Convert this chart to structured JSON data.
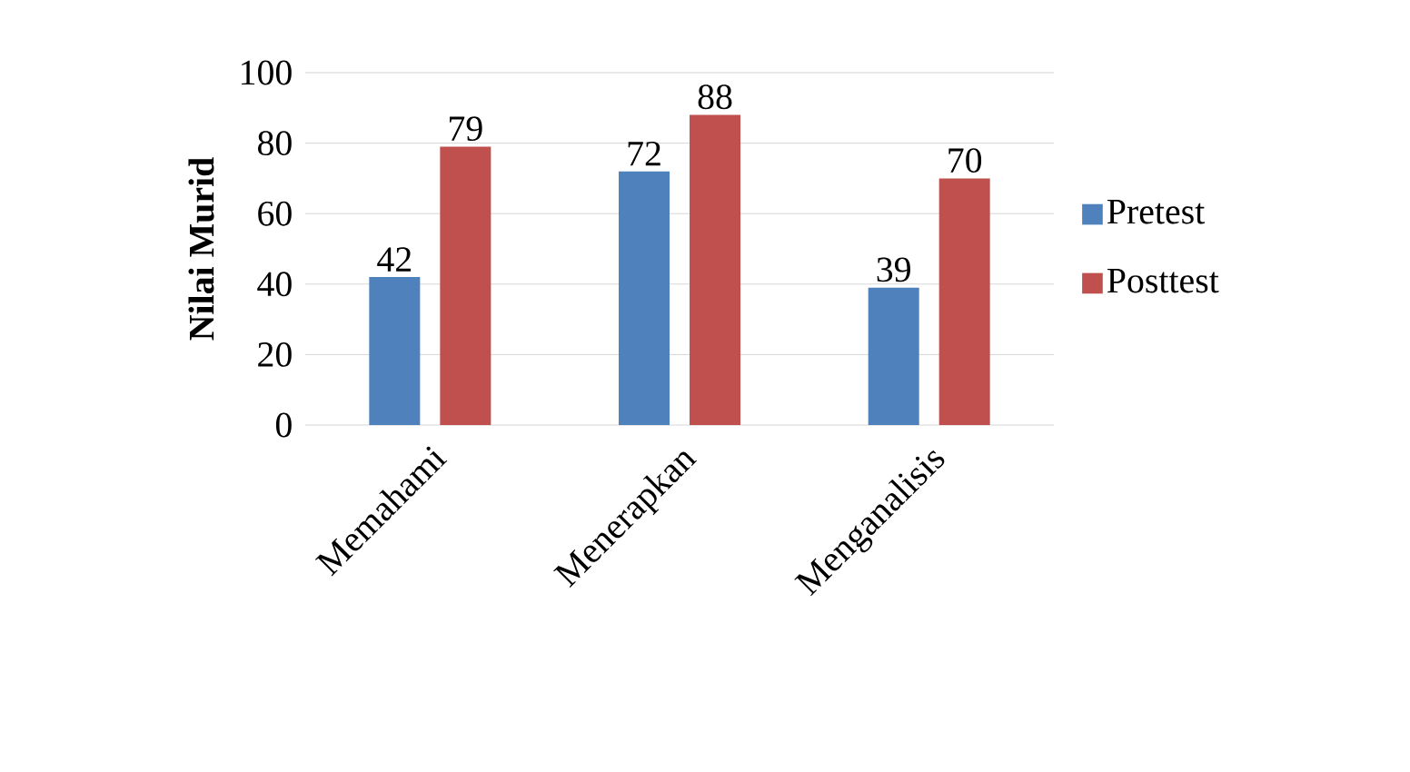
{
  "chart_data": {
    "type": "bar",
    "ylabel": "Nilai Murid",
    "categories": [
      "Memahami",
      "Menerapkan",
      "Menganalisis"
    ],
    "series": [
      {
        "name": "Pretest",
        "color": "#4f81bd",
        "values": [
          42,
          72,
          39
        ]
      },
      {
        "name": "Posttest",
        "color": "#c0504d",
        "values": [
          79,
          88,
          70
        ]
      }
    ],
    "ylim": [
      0,
      100
    ],
    "yticks": [
      0,
      20,
      40,
      60,
      80,
      100
    ],
    "grid": "y",
    "legend": "right",
    "data_labels": true
  }
}
